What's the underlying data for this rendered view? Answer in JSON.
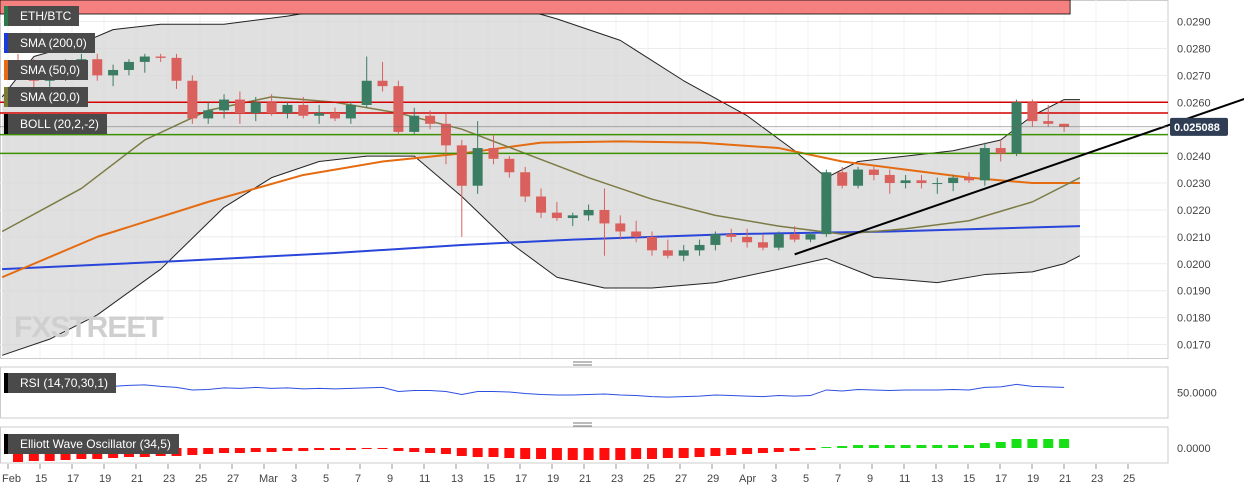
{
  "chart_data": {
    "type": "candlestick",
    "pair": "ETH/BTC",
    "ylim": [
      0.0165,
      0.0298
    ],
    "y_ticks": [
      "0.0290",
      "0.0280",
      "0.0270",
      "0.0260",
      "0.0250",
      "0.0240",
      "0.0230",
      "0.0220",
      "0.0210",
      "0.0200",
      "0.0190",
      "0.0180",
      "0.0170"
    ],
    "last_price": "0.025088",
    "x_labels": [
      "Feb",
      "15",
      "17",
      "19",
      "21",
      "23",
      "25",
      "27",
      "Mar",
      "3",
      "5",
      "7",
      "9",
      "11",
      "13",
      "15",
      "17",
      "19",
      "21",
      "23",
      "25",
      "27",
      "29",
      "Apr",
      "3",
      "5",
      "7",
      "9",
      "11",
      "13",
      "15",
      "17",
      "19",
      "21",
      "23",
      "25"
    ],
    "candles": [
      {
        "o": 0.02745,
        "h": 0.0278,
        "l": 0.027,
        "c": 0.0272
      },
      {
        "o": 0.0272,
        "h": 0.0276,
        "l": 0.0265,
        "c": 0.0268
      },
      {
        "o": 0.0268,
        "h": 0.0273,
        "l": 0.0264,
        "c": 0.0271
      },
      {
        "o": 0.0271,
        "h": 0.0276,
        "l": 0.0268,
        "c": 0.0274
      },
      {
        "o": 0.0274,
        "h": 0.0278,
        "l": 0.027,
        "c": 0.0276
      },
      {
        "o": 0.0276,
        "h": 0.0278,
        "l": 0.0268,
        "c": 0.027
      },
      {
        "o": 0.027,
        "h": 0.0274,
        "l": 0.0266,
        "c": 0.0272
      },
      {
        "o": 0.0272,
        "h": 0.0276,
        "l": 0.027,
        "c": 0.0275
      },
      {
        "o": 0.0275,
        "h": 0.0278,
        "l": 0.0271,
        "c": 0.0277
      },
      {
        "o": 0.0277,
        "h": 0.0278,
        "l": 0.0275,
        "c": 0.02765
      },
      {
        "o": 0.02765,
        "h": 0.0278,
        "l": 0.0265,
        "c": 0.0268
      },
      {
        "o": 0.0268,
        "h": 0.027,
        "l": 0.0252,
        "c": 0.0254
      },
      {
        "o": 0.0254,
        "h": 0.026,
        "l": 0.0252,
        "c": 0.0257
      },
      {
        "o": 0.0257,
        "h": 0.0263,
        "l": 0.0254,
        "c": 0.0261
      },
      {
        "o": 0.0261,
        "h": 0.0264,
        "l": 0.0252,
        "c": 0.0256
      },
      {
        "o": 0.0256,
        "h": 0.0262,
        "l": 0.0253,
        "c": 0.026
      },
      {
        "o": 0.026,
        "h": 0.0263,
        "l": 0.0255,
        "c": 0.0256
      },
      {
        "o": 0.0256,
        "h": 0.026,
        "l": 0.0254,
        "c": 0.0259
      },
      {
        "o": 0.0259,
        "h": 0.0262,
        "l": 0.0254,
        "c": 0.0255
      },
      {
        "o": 0.0255,
        "h": 0.0259,
        "l": 0.0252,
        "c": 0.0256
      },
      {
        "o": 0.0256,
        "h": 0.0258,
        "l": 0.0253,
        "c": 0.0254
      },
      {
        "o": 0.0254,
        "h": 0.026,
        "l": 0.0252,
        "c": 0.0259
      },
      {
        "o": 0.0259,
        "h": 0.0277,
        "l": 0.0258,
        "c": 0.0268
      },
      {
        "o": 0.0268,
        "h": 0.0275,
        "l": 0.0264,
        "c": 0.0266
      },
      {
        "o": 0.0266,
        "h": 0.0268,
        "l": 0.0248,
        "c": 0.0249
      },
      {
        "o": 0.0249,
        "h": 0.0258,
        "l": 0.0248,
        "c": 0.0255
      },
      {
        "o": 0.0255,
        "h": 0.0257,
        "l": 0.025,
        "c": 0.0252
      },
      {
        "o": 0.0252,
        "h": 0.0256,
        "l": 0.0237,
        "c": 0.0244
      },
      {
        "o": 0.0244,
        "h": 0.0246,
        "l": 0.021,
        "c": 0.0229
      },
      {
        "o": 0.0229,
        "h": 0.0253,
        "l": 0.0226,
        "c": 0.0243
      },
      {
        "o": 0.0243,
        "h": 0.0248,
        "l": 0.0237,
        "c": 0.0239
      },
      {
        "o": 0.0239,
        "h": 0.024,
        "l": 0.0232,
        "c": 0.0234
      },
      {
        "o": 0.0234,
        "h": 0.0236,
        "l": 0.0223,
        "c": 0.0225
      },
      {
        "o": 0.0225,
        "h": 0.0228,
        "l": 0.0217,
        "c": 0.0219
      },
      {
        "o": 0.0219,
        "h": 0.0223,
        "l": 0.0216,
        "c": 0.0217
      },
      {
        "o": 0.0217,
        "h": 0.0219,
        "l": 0.0214,
        "c": 0.0218
      },
      {
        "o": 0.0218,
        "h": 0.0222,
        "l": 0.0216,
        "c": 0.022
      },
      {
        "o": 0.022,
        "h": 0.0228,
        "l": 0.0203,
        "c": 0.0215
      },
      {
        "o": 0.0215,
        "h": 0.0218,
        "l": 0.0209,
        "c": 0.0212
      },
      {
        "o": 0.0212,
        "h": 0.0216,
        "l": 0.0208,
        "c": 0.021
      },
      {
        "o": 0.021,
        "h": 0.0212,
        "l": 0.0203,
        "c": 0.0205
      },
      {
        "o": 0.0205,
        "h": 0.0209,
        "l": 0.0202,
        "c": 0.0203
      },
      {
        "o": 0.0203,
        "h": 0.0207,
        "l": 0.0201,
        "c": 0.0205
      },
      {
        "o": 0.0205,
        "h": 0.0209,
        "l": 0.0203,
        "c": 0.0207
      },
      {
        "o": 0.0207,
        "h": 0.0212,
        "l": 0.0205,
        "c": 0.0211
      },
      {
        "o": 0.0211,
        "h": 0.0213,
        "l": 0.0208,
        "c": 0.021
      },
      {
        "o": 0.021,
        "h": 0.0213,
        "l": 0.0206,
        "c": 0.0208
      },
      {
        "o": 0.0208,
        "h": 0.0211,
        "l": 0.0205,
        "c": 0.0206
      },
      {
        "o": 0.0206,
        "h": 0.0212,
        "l": 0.0205,
        "c": 0.0211
      },
      {
        "o": 0.0211,
        "h": 0.0214,
        "l": 0.0208,
        "c": 0.0209
      },
      {
        "o": 0.0209,
        "h": 0.0212,
        "l": 0.0208,
        "c": 0.0211
      },
      {
        "o": 0.0211,
        "h": 0.0235,
        "l": 0.021,
        "c": 0.0234
      },
      {
        "o": 0.0234,
        "h": 0.0236,
        "l": 0.0228,
        "c": 0.0229
      },
      {
        "o": 0.0229,
        "h": 0.0236,
        "l": 0.0228,
        "c": 0.0235
      },
      {
        "o": 0.0235,
        "h": 0.0236,
        "l": 0.0231,
        "c": 0.0233
      },
      {
        "o": 0.0233,
        "h": 0.0235,
        "l": 0.0226,
        "c": 0.023
      },
      {
        "o": 0.023,
        "h": 0.0233,
        "l": 0.0228,
        "c": 0.0231
      },
      {
        "o": 0.0231,
        "h": 0.0233,
        "l": 0.0228,
        "c": 0.023
      },
      {
        "o": 0.023,
        "h": 0.0232,
        "l": 0.0226,
        "c": 0.023
      },
      {
        "o": 0.023,
        "h": 0.0233,
        "l": 0.0227,
        "c": 0.0232
      },
      {
        "o": 0.0232,
        "h": 0.0234,
        "l": 0.023,
        "c": 0.0231
      },
      {
        "o": 0.0231,
        "h": 0.0245,
        "l": 0.0229,
        "c": 0.0243
      },
      {
        "o": 0.0243,
        "h": 0.0246,
        "l": 0.0238,
        "c": 0.0241
      },
      {
        "o": 0.0241,
        "h": 0.0261,
        "l": 0.024,
        "c": 0.026
      },
      {
        "o": 0.026,
        "h": 0.0261,
        "l": 0.0251,
        "c": 0.0253
      },
      {
        "o": 0.0253,
        "h": 0.0259,
        "l": 0.0251,
        "c": 0.0252
      },
      {
        "o": 0.0252,
        "h": 0.0252,
        "l": 0.0249,
        "c": 0.02509
      }
    ],
    "horizontal_lines": [
      {
        "y": 0.026,
        "color": "#d40000"
      },
      {
        "y": 0.0256,
        "color": "#d40000"
      },
      {
        "y": 0.0248,
        "color": "#3d8f00"
      },
      {
        "y": 0.0241,
        "color": "#3d8f00"
      }
    ],
    "trendline": {
      "from": [
        49,
        0.02035
      ],
      "to": [
        78,
        0.02625
      ],
      "color": "#000000"
    },
    "sma200": [
      [
        -1,
        0.0198
      ],
      [
        10,
        0.0201
      ],
      [
        20,
        0.0204
      ],
      [
        28,
        0.0207
      ],
      [
        35,
        0.0209
      ],
      [
        45,
        0.0211
      ],
      [
        55,
        0.0212
      ],
      [
        67,
        0.0214
      ]
    ],
    "sma50": [
      [
        -1,
        0.0195
      ],
      [
        5,
        0.021
      ],
      [
        12,
        0.0223
      ],
      [
        18,
        0.0233
      ],
      [
        23,
        0.0238
      ],
      [
        28,
        0.0241
      ],
      [
        33,
        0.0245
      ],
      [
        38,
        0.02455
      ],
      [
        43,
        0.0245
      ],
      [
        48,
        0.0243
      ],
      [
        52,
        0.0238
      ],
      [
        56,
        0.0235
      ],
      [
        60,
        0.0232
      ],
      [
        64,
        0.023
      ],
      [
        67,
        0.023
      ]
    ],
    "sma20": [
      [
        -1,
        0.0212
      ],
      [
        4,
        0.0228
      ],
      [
        8,
        0.0246
      ],
      [
        12,
        0.0257
      ],
      [
        16,
        0.0262
      ],
      [
        20,
        0.026
      ],
      [
        24,
        0.0256
      ],
      [
        28,
        0.025
      ],
      [
        32,
        0.0241
      ],
      [
        36,
        0.0232
      ],
      [
        40,
        0.0224
      ],
      [
        44,
        0.0218
      ],
      [
        48,
        0.0214
      ],
      [
        52,
        0.0211
      ],
      [
        56,
        0.0213
      ],
      [
        60,
        0.0216
      ],
      [
        64,
        0.0223
      ],
      [
        67,
        0.0232
      ]
    ],
    "boll_upper": [
      [
        -1,
        0.0262
      ],
      [
        1,
        0.0277
      ],
      [
        4,
        0.0282
      ],
      [
        6,
        0.0287
      ],
      [
        9,
        0.0289
      ],
      [
        13,
        0.0289
      ],
      [
        17,
        0.0292
      ],
      [
        21,
        0.0296
      ],
      [
        24,
        0.0298
      ],
      [
        27,
        0.0296
      ],
      [
        31,
        0.0296
      ],
      [
        34,
        0.0291
      ],
      [
        38,
        0.0283
      ],
      [
        42,
        0.0268
      ],
      [
        46,
        0.0255
      ],
      [
        49,
        0.0242
      ],
      [
        51,
        0.0232
      ],
      [
        53,
        0.0238
      ],
      [
        56,
        0.024
      ],
      [
        59,
        0.0242
      ],
      [
        62,
        0.0246
      ],
      [
        64,
        0.0255
      ],
      [
        66,
        0.0261
      ],
      [
        67,
        0.0261
      ]
    ],
    "boll_lower": [
      [
        -1,
        0.0166
      ],
      [
        2,
        0.0172
      ],
      [
        5,
        0.0181
      ],
      [
        9,
        0.0198
      ],
      [
        13,
        0.0221
      ],
      [
        16,
        0.0232
      ],
      [
        19,
        0.0238
      ],
      [
        22,
        0.024
      ],
      [
        25,
        0.024
      ],
      [
        28,
        0.0225
      ],
      [
        31,
        0.0208
      ],
      [
        34,
        0.0195
      ],
      [
        37,
        0.0191
      ],
      [
        40,
        0.0191
      ],
      [
        44,
        0.0193
      ],
      [
        48,
        0.0198
      ],
      [
        51,
        0.0202
      ],
      [
        54,
        0.0195
      ],
      [
        58,
        0.0193
      ],
      [
        61,
        0.0196
      ],
      [
        64,
        0.0197
      ],
      [
        66,
        0.02
      ],
      [
        67,
        0.0203
      ]
    ],
    "rsi": {
      "label": "RSI (14,70,30,1)",
      "tick": "50.0000",
      "overbought": 70,
      "oversold": 30,
      "values": [
        62,
        63,
        64,
        61,
        63,
        64,
        62,
        64,
        65,
        62,
        60,
        55,
        56,
        59,
        58,
        60,
        58,
        59,
        57,
        58,
        57,
        58,
        59,
        60,
        52,
        54,
        54,
        52,
        46,
        52,
        52,
        51,
        48,
        46,
        45,
        45,
        46,
        47,
        45,
        44,
        42,
        41,
        42,
        43,
        45,
        44,
        43,
        42,
        44,
        43,
        44,
        55,
        53,
        56,
        55,
        54,
        55,
        55,
        55,
        56,
        55,
        60,
        61,
        66,
        62,
        61,
        60
      ]
    },
    "ewo": {
      "label": "Elliott Wave Oscillator (34,5)",
      "tick": "0.0000",
      "values": [
        -0.0014,
        -0.0013,
        -0.0013,
        -0.0012,
        -0.0011,
        -0.0011,
        -0.001,
        -0.0009,
        -0.0009,
        -0.0008,
        -0.0008,
        -0.0007,
        -0.0006,
        -0.0005,
        -0.0005,
        -0.0004,
        -0.0004,
        -0.0003,
        -0.0003,
        -0.0002,
        -0.0002,
        -0.0002,
        -0.0001,
        -0.0001,
        -0.0003,
        -0.0004,
        -0.0005,
        -0.0006,
        -0.0008,
        -0.0009,
        -0.0009,
        -0.001,
        -0.0011,
        -0.0011,
        -0.0012,
        -0.0012,
        -0.0012,
        -0.0012,
        -0.0012,
        -0.0011,
        -0.0011,
        -0.001,
        -0.001,
        -0.0009,
        -0.0008,
        -0.0007,
        -0.0006,
        -0.0005,
        -0.0004,
        -0.0003,
        -0.0002,
        0.0001,
        0.0002,
        0.0003,
        0.0003,
        0.0003,
        0.0003,
        0.0003,
        0.0003,
        0.0003,
        0.0003,
        0.0005,
        0.0006,
        0.0009,
        0.0009,
        0.0009,
        0.0009
      ]
    },
    "legend": [
      {
        "label": "ETH/BTC",
        "color": "#2a7a4a"
      },
      {
        "label": "SMA (200,0)",
        "color": "#1a3bd6"
      },
      {
        "label": "SMA (50,0)",
        "color": "#e76b12"
      },
      {
        "label": "SMA (20,0)",
        "color": "#7b7b35"
      },
      {
        "label": "BOLL (20,2,-2)",
        "color": "#000000"
      }
    ],
    "watermark": "FXSTREET",
    "colors": {
      "up": "#3a7d63",
      "down": "#d9605d",
      "sma200": "#2a45d9",
      "sma50": "#e56b10",
      "sma20": "#7d7b45",
      "boll": "#222222",
      "boll_fill": "#d6d6d6",
      "rsi_line": "#2d4fe0",
      "rsi_high": "#74f06b",
      "rsi_low": "#f58080",
      "ewo_up": "#17e017",
      "ewo_down": "#ff0c0c",
      "price_tag": "#2f3e55"
    }
  }
}
